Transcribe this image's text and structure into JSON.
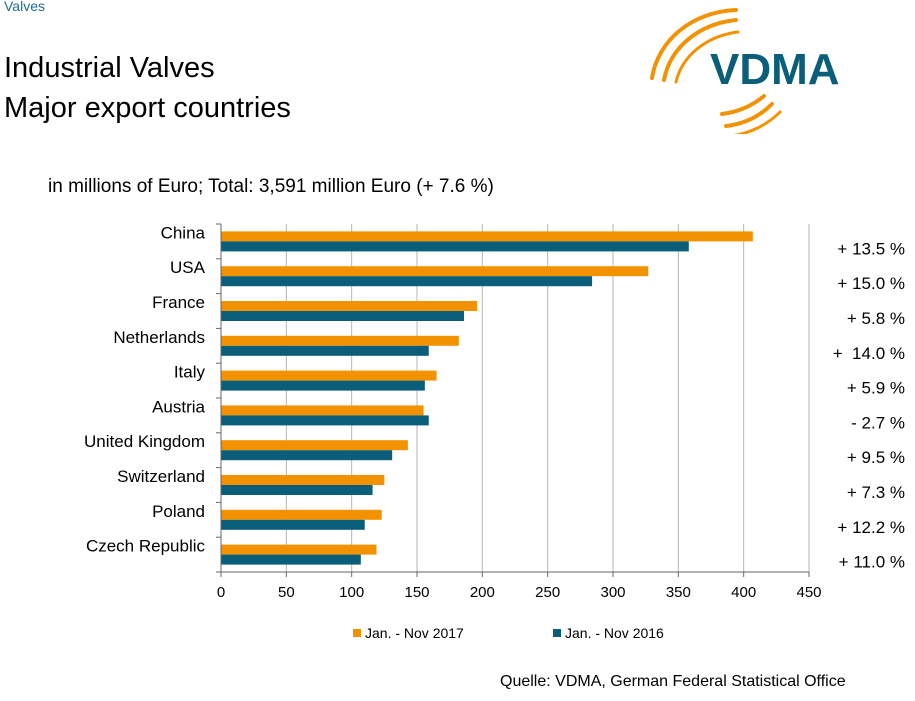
{
  "header": {
    "section_label": "Valves",
    "title_line1": "Industrial Valves",
    "title_line2": "Major export countries",
    "logo_text": "VDMA"
  },
  "colors": {
    "series_2017": "#f39200",
    "series_2016": "#0b5e7a",
    "logo_arcs": "#f39200",
    "logo_text": "#0b5e7a"
  },
  "chart_data": {
    "type": "bar",
    "orientation": "horizontal",
    "subtitle": "in millions of Euro; Total: 3,591 million Euro (+ 7.6 %)",
    "categories": [
      "China",
      "USA",
      "France",
      "Netherlands",
      "Italy",
      "Austria",
      "United Kingdom",
      "Switzerland",
      "Poland",
      "Czech Republic"
    ],
    "series": [
      {
        "name": "Jan. - Nov 2017",
        "values": [
          407,
          327,
          196,
          182,
          165,
          155,
          143,
          125,
          123,
          119
        ]
      },
      {
        "name": "Jan. - Nov 2016",
        "values": [
          358,
          284,
          186,
          159,
          156,
          159,
          131,
          116,
          110,
          107
        ]
      }
    ],
    "changes": [
      "+ 13.5 %",
      "+ 15.0 %",
      "+ 5.8 %",
      "+  14.0 %",
      "+ 5.9 %",
      "- 2.7 %",
      "+ 9.5 %",
      "+ 7.3 %",
      "+ 12.2 %",
      "+ 11.0 %"
    ],
    "xlim": [
      0,
      450
    ],
    "xticks": [
      0,
      50,
      100,
      150,
      200,
      250,
      300,
      350,
      400,
      450
    ],
    "grid": "vertical",
    "legend_position": "bottom"
  },
  "footer": {
    "source": "Quelle: VDMA, German Federal Statistical Office"
  }
}
